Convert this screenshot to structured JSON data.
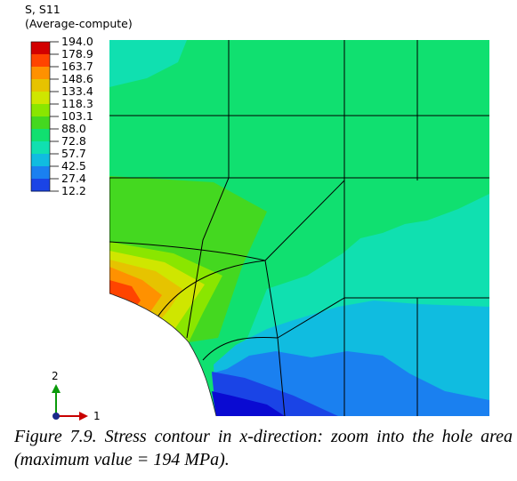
{
  "legend": {
    "title_line1": "S, S11",
    "title_line2": "(Average-compute)",
    "levels": [
      "194.0",
      "178.9",
      "163.7",
      "148.6",
      "133.4",
      "118.3",
      "103.1",
      "88.0",
      "72.8",
      "57.7",
      "42.5",
      "27.4",
      "12.2"
    ],
    "colors": [
      "#d20000",
      "#ff4400",
      "#ff9100",
      "#e6c300",
      "#cfe600",
      "#8ae600",
      "#44d820",
      "#10e070",
      "#10e0b0",
      "#10bce0",
      "#1a80f0",
      "#1a44e6",
      "#0a0ad2"
    ]
  },
  "axis": {
    "y_label": "2",
    "x_label": "1"
  },
  "caption": {
    "text": "Figure 7.9. Stress contour in x-direction: zoom into the hole area (maximum value = 194 MPa)."
  }
}
